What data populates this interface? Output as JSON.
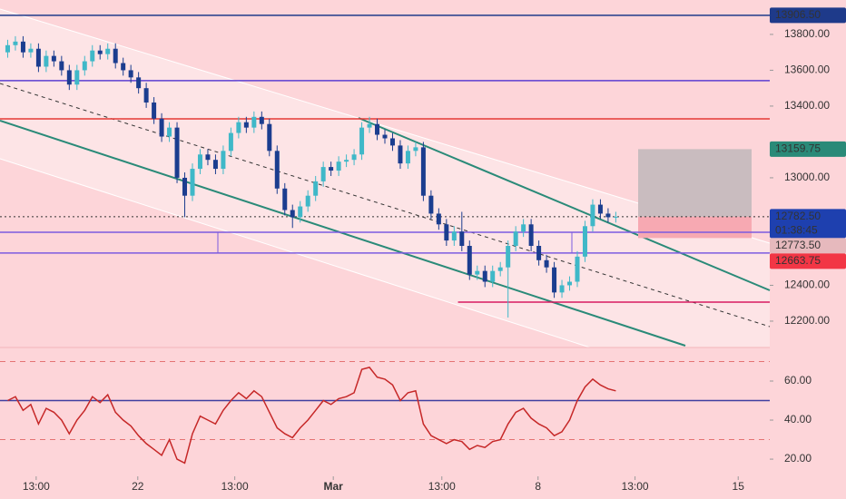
{
  "chart_data": {
    "type": "candlestick",
    "x": [
      1,
      2,
      3,
      4,
      5,
      6,
      7,
      8,
      9,
      10,
      11,
      12,
      13,
      14,
      15,
      16,
      17,
      18,
      19,
      20,
      21,
      22,
      23,
      24,
      25,
      26,
      27,
      28,
      29,
      30,
      31,
      32,
      33,
      34,
      35,
      36,
      37,
      38,
      39,
      40,
      41,
      42,
      43,
      44,
      45,
      46,
      47,
      48,
      49,
      50,
      51,
      52,
      53,
      54,
      55,
      56,
      57,
      58,
      59,
      60,
      61,
      62,
      63,
      64,
      65,
      66,
      67,
      68,
      69,
      70,
      71,
      72,
      73,
      74,
      75,
      76,
      77,
      78,
      79,
      80
    ],
    "open": [
      13700,
      13740,
      13760,
      13700,
      13720,
      13620,
      13680,
      13650,
      13600,
      13520,
      13600,
      13650,
      13710,
      13690,
      13720,
      13640,
      13600,
      13560,
      13500,
      13420,
      13330,
      13230,
      13280,
      13000,
      12900,
      13050,
      13130,
      13100,
      13050,
      13150,
      13250,
      13310,
      13280,
      13340,
      13300,
      13150,
      12940,
      12820,
      12780,
      12840,
      12900,
      12980,
      13060,
      13040,
      13090,
      13100,
      13130,
      13280,
      13300,
      13240,
      13220,
      13180,
      13080,
      13150,
      13170,
      12900,
      12800,
      12740,
      12650,
      12700,
      12620,
      12460,
      12480,
      12420,
      12480,
      12500,
      12620,
      12700,
      12740,
      12620,
      12540,
      12500,
      12360,
      12400,
      12420,
      12560,
      12730,
      12850,
      12800,
      12780
    ],
    "high": [
      13770,
      13790,
      13790,
      13750,
      13750,
      13710,
      13710,
      13680,
      13630,
      13630,
      13680,
      13740,
      13740,
      13750,
      13750,
      13670,
      13630,
      13590,
      13530,
      13450,
      13360,
      13310,
      13310,
      13030,
      13080,
      13160,
      13160,
      13130,
      13180,
      13280,
      13340,
      13340,
      13370,
      13370,
      13330,
      13180,
      12970,
      12850,
      12870,
      12930,
      13010,
      13090,
      13090,
      13120,
      13130,
      13160,
      13310,
      13340,
      13330,
      13270,
      13250,
      13210,
      13180,
      13200,
      13200,
      12930,
      12830,
      12770,
      12730,
      12810,
      12650,
      12510,
      12510,
      12510,
      12530,
      12650,
      12730,
      12770,
      12770,
      12650,
      12570,
      12530,
      12430,
      12450,
      12590,
      12760,
      12880,
      12880,
      12830,
      12810
    ],
    "low": [
      13670,
      13710,
      13670,
      13670,
      13590,
      13590,
      13620,
      13570,
      13490,
      13490,
      13570,
      13620,
      13660,
      13660,
      13610,
      13570,
      13530,
      13470,
      13390,
      13300,
      13200,
      13200,
      12970,
      12780,
      12870,
      13020,
      13070,
      13020,
      13020,
      13120,
      13220,
      13250,
      13250,
      13270,
      13120,
      12910,
      12790,
      12720,
      12750,
      12810,
      12870,
      12950,
      13010,
      13010,
      13060,
      13070,
      13100,
      13250,
      13210,
      13190,
      13150,
      13050,
      13050,
      13120,
      12870,
      12770,
      12710,
      12620,
      12620,
      12590,
      12430,
      12430,
      12390,
      12390,
      12450,
      12220,
      12590,
      12670,
      12590,
      12510,
      12470,
      12330,
      12330,
      12370,
      12390,
      12530,
      12700,
      12770,
      12750,
      12750
    ],
    "close": [
      13740,
      13760,
      13700,
      13720,
      13620,
      13680,
      13650,
      13600,
      13520,
      13600,
      13650,
      13710,
      13690,
      13720,
      13640,
      13600,
      13560,
      13500,
      13420,
      13330,
      13230,
      13280,
      13000,
      12900,
      13050,
      13130,
      13100,
      13050,
      13150,
      13250,
      13310,
      13280,
      13340,
      13300,
      13150,
      12940,
      12820,
      12780,
      12840,
      12900,
      12980,
      13060,
      13040,
      13090,
      13100,
      13130,
      13280,
      13300,
      13240,
      13220,
      13180,
      13080,
      13150,
      13170,
      12900,
      12800,
      12740,
      12650,
      12700,
      12620,
      12460,
      12480,
      12420,
      12480,
      12500,
      12620,
      12700,
      12740,
      12620,
      12540,
      12500,
      12360,
      12400,
      12420,
      12560,
      12730,
      12850,
      12800,
      12780,
      12782.5
    ],
    "up_color": "#3fb8c8",
    "down_color": "#1b3d8f",
    "xlim": [
      0,
      100
    ],
    "xticks": [
      {
        "value": 4.7,
        "label": "13:00"
      },
      {
        "value": 17.9,
        "label": "22"
      },
      {
        "value": 30.5,
        "label": "13:00"
      },
      {
        "value": 43.3,
        "label": "Mar"
      },
      {
        "value": 57.4,
        "label": "13:00"
      },
      {
        "value": 69.9,
        "label": "8"
      },
      {
        "value": 82.5,
        "label": "13:00"
      },
      {
        "value": 95.9,
        "label": "15"
      }
    ],
    "ylim": [
      12053,
      13992
    ],
    "yticks": [
      {
        "value": 13800,
        "label": "13800.00"
      },
      {
        "value": 13600,
        "label": "13600.00"
      },
      {
        "value": 13400,
        "label": "13400.00"
      },
      {
        "value": 13000,
        "label": "13000.00"
      },
      {
        "value": 12400,
        "label": "12400.00"
      },
      {
        "value": 12200,
        "label": "12200.00"
      }
    ],
    "price_labels": [
      {
        "value": 13906.5,
        "label": "13906.50",
        "color": "#1e3a8a"
      },
      {
        "value": 13159.75,
        "label": "13159.75",
        "color": "#2a8a78"
      },
      {
        "value": 12782.5,
        "label": "12782.50",
        "countdown": "01:38:45",
        "color": "#1e40af"
      },
      {
        "value": 12773.5,
        "label": "12773.50",
        "color": "#e6b9bd"
      },
      {
        "value": 12663.75,
        "label": "12663.75",
        "color": "#f23645"
      }
    ],
    "levels": [
      {
        "value": 13542,
        "color": "#5b3fd1",
        "x_start": 0
      },
      {
        "value": 13329,
        "color": "#e53935",
        "x_start": 0
      },
      {
        "value": 12696,
        "color": "#7b5be0",
        "x_start": 0
      },
      {
        "value": 12580,
        "color": "#7b5be0",
        "x_start": 0
      },
      {
        "value": 12306,
        "color": "#d81b60",
        "x_start": 59.5
      }
    ],
    "rsi": {
      "color": "#c62828",
      "values": [
        50,
        52,
        45,
        48,
        38,
        46,
        44,
        40,
        33,
        40,
        45,
        52,
        49,
        53,
        44,
        40,
        37,
        32,
        28,
        25,
        22,
        30,
        20,
        18,
        33,
        42,
        40,
        38,
        45,
        50,
        54,
        51,
        55,
        52,
        44,
        36,
        33,
        31,
        36,
        40,
        45,
        50,
        48,
        51,
        52,
        54,
        66,
        67,
        62,
        61,
        58,
        50,
        54,
        55,
        38,
        32,
        30,
        28,
        30,
        29,
        25,
        27,
        26,
        29,
        30,
        38,
        44,
        46,
        41,
        38,
        36,
        32,
        34,
        40,
        50,
        57,
        61,
        58,
        56,
        55
      ],
      "ylim": [
        11.2,
        77.2
      ],
      "yticks": [
        {
          "value": 60,
          "label": "60.00"
        },
        {
          "value": 40,
          "label": "40.00"
        },
        {
          "value": 20,
          "label": "20.00"
        }
      ],
      "levels": [
        70,
        50,
        30
      ]
    }
  }
}
